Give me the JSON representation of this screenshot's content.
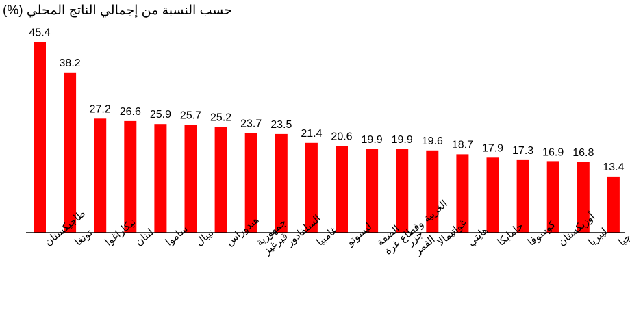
{
  "chart_data": {
    "type": "bar",
    "title": "حسب النسبة من إجمالي الناتج المحلي (%)",
    "xlabel": "",
    "ylabel": "",
    "ylim": [
      0,
      46
    ],
    "grid": false,
    "legend": "none",
    "bar_color": "#ff0000",
    "categories": [
      [
        "طاجيكستان"
      ],
      [
        "تونغا"
      ],
      [
        "نيكاراغوا"
      ],
      [
        "لبنان"
      ],
      [
        "ساموا"
      ],
      [
        "نيبال"
      ],
      [
        "هندوراس"
      ],
      [
        "جمهورية",
        "قيرغيز"
      ],
      [
        "السلفادور"
      ],
      [
        "غامبيا"
      ],
      [
        "ليسوتو"
      ],
      [
        "الضفة",
        "الغربية وقطاع غزة"
      ],
      [
        "جزر",
        "القمر"
      ],
      [
        "غواتيمالا"
      ],
      [
        "هايتي"
      ],
      [
        "جامايكا"
      ],
      [
        "كوسوفا"
      ],
      [
        "أوزبكستان"
      ],
      [
        "ليبريا"
      ],
      [
        "جورجيا"
      ]
    ],
    "value_labels": [
      "45.4",
      "38.2",
      "27.2",
      "26.6",
      "25.9",
      "25.7",
      "25.2",
      "23.7",
      "23.5",
      "21.4",
      "20.6",
      "19.9",
      "19.9",
      "19.6",
      "18.7",
      "17.9",
      "17.3",
      "16.9",
      "16.8",
      "13.4"
    ],
    "values": [
      45.4,
      38.2,
      27.2,
      26.6,
      25.9,
      25.7,
      25.2,
      23.7,
      23.5,
      21.4,
      20.6,
      19.9,
      19.9,
      19.6,
      18.7,
      17.9,
      17.3,
      16.9,
      16.8,
      13.4
    ]
  }
}
